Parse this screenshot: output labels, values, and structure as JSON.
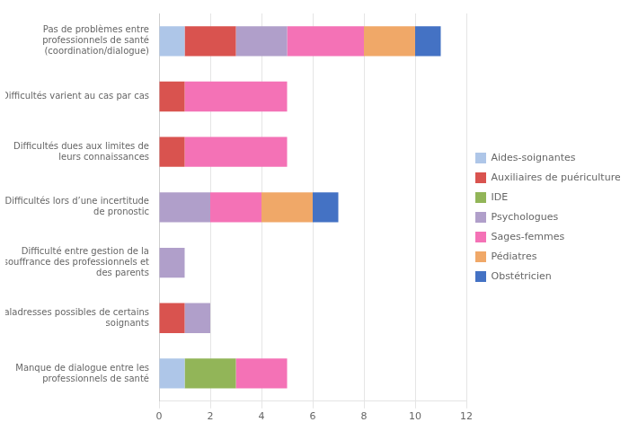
{
  "chart_data": {
    "type": "bar",
    "orientation": "horizontal",
    "stacked": true,
    "categories": [
      "Pas de problèmes entre\nprofessionnels de santé\n(coordination/dialogue)",
      "Difficultés varient au cas par cas",
      "Difficultés dues aux limites de\nleurs connaissances",
      "Difficultés lors d’une incertitude\nde pronostic",
      "Difficulté entre gestion de la\nsouffrance des professionnels et\ndes parents",
      "Maladresses possibles de certains\nsoignants",
      "Manque de dialogue entre les\nprofessionnels de santé"
    ],
    "series": [
      {
        "name": "Aides-soignantes",
        "color": "#aec6e8",
        "values": [
          1,
          0,
          0,
          0,
          0,
          0,
          1
        ]
      },
      {
        "name": "Auxiliaires de puériculture",
        "color": "#d9534f",
        "values": [
          2,
          1,
          1,
          0,
          0,
          1,
          0
        ]
      },
      {
        "name": "IDE",
        "color": "#92b558",
        "values": [
          0,
          0,
          0,
          0,
          0,
          0,
          2
        ]
      },
      {
        "name": "Psychologues",
        "color": "#b09fca",
        "values": [
          2,
          0,
          0,
          2,
          1,
          1,
          0
        ]
      },
      {
        "name": "Sages-femmes",
        "color": "#f472b6",
        "values": [
          3,
          4,
          4,
          2,
          0,
          0,
          2
        ]
      },
      {
        "name": "Pédiatres",
        "color": "#f0a868",
        "values": [
          2,
          0,
          0,
          2,
          0,
          0,
          0
        ]
      },
      {
        "name": "Obstétricien",
        "color": "#4472c4",
        "values": [
          1,
          0,
          0,
          1,
          0,
          0,
          0
        ]
      }
    ],
    "xlim": [
      0,
      12
    ],
    "xticks": [
      0,
      2,
      4,
      6,
      8,
      10,
      12
    ],
    "grid": true,
    "legend": "right"
  }
}
